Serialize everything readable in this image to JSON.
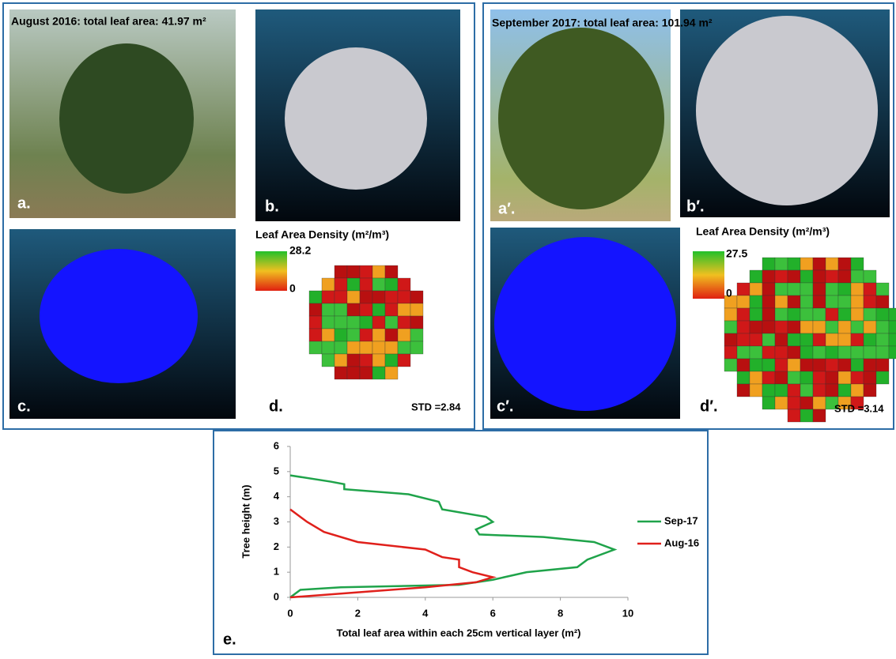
{
  "panels": [
    {
      "caption": "August 2016: total leaf area: 41.97 m²",
      "labels": [
        "a.",
        "b.",
        "c.",
        "d."
      ],
      "legend_title": "Leaf Area Density (m²/m³)",
      "colorbar_max": "28.2",
      "colorbar_min": "0",
      "std": "STD =2.84"
    },
    {
      "caption": "September 2017: total leaf area: 101.94 m²",
      "labels": [
        "a′.",
        "b′.",
        "c′.",
        "d′."
      ],
      "legend_title": "Leaf Area Density (m²/m³)",
      "colorbar_max": "27.5",
      "colorbar_min": "0",
      "std": "STD =3.14"
    }
  ],
  "chart_data": {
    "type": "line",
    "panel_label": "e.",
    "x_label": "Total leaf area within each 25cm vertical layer (m²)",
    "y_label": "Tree height (m)",
    "xlim": [
      0,
      10
    ],
    "xticks": [
      0,
      2,
      4,
      6,
      8,
      10
    ],
    "ylim": [
      0,
      6
    ],
    "yticks": [
      0,
      1,
      2,
      3,
      4,
      5,
      6
    ],
    "series": [
      {
        "name": "Sep-17",
        "color": "#1fa34a",
        "x": [
          0,
          0.3,
          1.5,
          5,
          6,
          7,
          8.5,
          8.8,
          9.6,
          9,
          7.5,
          5.6,
          5.5,
          6,
          5.8,
          4.5,
          4.4,
          3.5,
          1.6,
          1.6,
          1.2,
          0
        ],
        "values": [
          0,
          0.3,
          0.4,
          0.5,
          0.7,
          1,
          1.2,
          1.5,
          1.9,
          2.2,
          2.4,
          2.5,
          2.7,
          3,
          3.2,
          3.5,
          3.8,
          4.1,
          4.3,
          4.5,
          4.6,
          4.85
        ]
      },
      {
        "name": "Aug-16",
        "color": "#e0201b",
        "x": [
          0,
          2,
          4,
          5.5,
          6,
          5.4,
          5,
          5,
          4.5,
          4,
          2,
          1,
          0.5,
          0.2,
          0
        ],
        "values": [
          0,
          0.2,
          0.4,
          0.6,
          0.8,
          1,
          1.2,
          1.5,
          1.6,
          1.9,
          2.2,
          2.6,
          3,
          3.3,
          3.5
        ]
      }
    ]
  }
}
